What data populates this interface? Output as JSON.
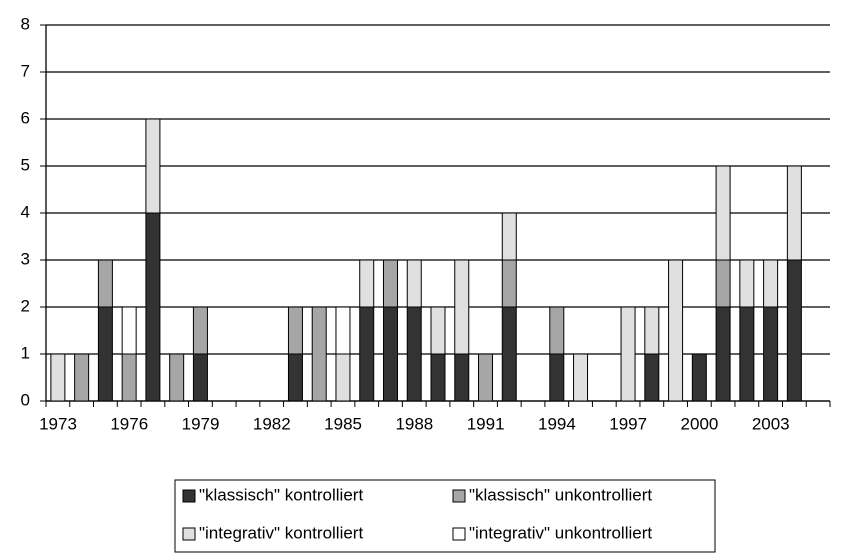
{
  "chart_data": {
    "type": "bar",
    "stacked": true,
    "categories": [
      "1973",
      null,
      null,
      "1976",
      null,
      null,
      "1979",
      null,
      null,
      "1982",
      null,
      null,
      "1985",
      null,
      null,
      "1988",
      null,
      null,
      "1991",
      null,
      null,
      "1994",
      null,
      null,
      "1997",
      null,
      null,
      "2000",
      null,
      null,
      "2003",
      null,
      null
    ],
    "series": [
      {
        "name": "\"klassisch\" kontrolliert",
        "color": "#333333",
        "values": [
          0,
          0,
          2,
          0,
          4,
          0,
          1,
          0,
          0,
          0,
          1,
          0,
          0,
          2,
          2,
          2,
          1,
          1,
          0,
          2,
          0,
          1,
          0,
          0,
          0,
          1,
          0,
          1,
          2,
          2,
          2,
          3,
          0
        ]
      },
      {
        "name": "\"klassisch\" unkontrolliert",
        "color": "#a6a6a6",
        "values": [
          0,
          1,
          1,
          1,
          0,
          1,
          1,
          0,
          0,
          0,
          1,
          2,
          0,
          0,
          1,
          0,
          0,
          0,
          1,
          1,
          0,
          1,
          0,
          0,
          0,
          0,
          0,
          0,
          1,
          0,
          0,
          0,
          0
        ]
      },
      {
        "name": "\"integrativ\" kontrolliert",
        "color": "#e0e0e0",
        "values": [
          1,
          0,
          0,
          0,
          2,
          0,
          0,
          0,
          0,
          0,
          0,
          0,
          1,
          1,
          0,
          1,
          1,
          2,
          0,
          1,
          0,
          0,
          1,
          0,
          2,
          1,
          3,
          0,
          2,
          1,
          1,
          2,
          0
        ]
      },
      {
        "name": "\"integrativ\" unkontrolliert",
        "color": "#ffffff",
        "values": [
          0,
          0,
          0,
          1,
          0,
          0,
          0,
          0,
          0,
          0,
          0,
          0,
          1,
          0,
          0,
          0,
          0,
          0,
          0,
          0,
          0,
          0,
          0,
          0,
          0,
          0,
          0,
          0,
          0,
          0,
          0,
          0,
          0
        ]
      }
    ],
    "ylim": [
      0,
      8
    ],
    "yticks": [
      0,
      1,
      2,
      3,
      4,
      5,
      6,
      7,
      8
    ],
    "grid": true,
    "legend": "bottom"
  }
}
